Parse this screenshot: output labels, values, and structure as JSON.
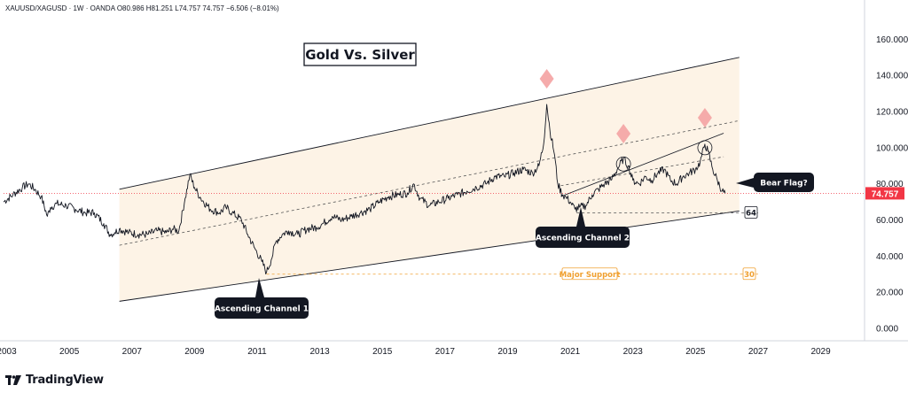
{
  "header": {
    "symbol": "XAUUSD/XAGUSD",
    "interval": "1W",
    "source": "OANDA",
    "open": "O80.986",
    "high": "H81.251",
    "low": "L74.757",
    "close": "74.757",
    "change": "−6.506 (−8.01%)"
  },
  "title": "Gold Vs. Silver",
  "branding": "TradingView",
  "colors": {
    "channel_fill": "#fdf3e6",
    "line": "#131722",
    "arrow": "#f4a7a7",
    "support": "#f0a030",
    "price_tag": "#f23645"
  },
  "annotations": {
    "channel1": "Ascending Channel 1",
    "channel2": "Ascending Channel 2",
    "bear_flag": "Bear Flag?",
    "major_support": "Major Support",
    "level_64": "64",
    "level_30": "30"
  },
  "price_tag": "74.757",
  "chart_data": {
    "type": "line",
    "title": "Gold Vs. Silver",
    "y_ticks": [
      "0.000",
      "20.000",
      "40.000",
      "60.000",
      "80.000",
      "100.000",
      "120.000",
      "140.000",
      "160.000"
    ],
    "x_ticks": [
      "2003",
      "2005",
      "2007",
      "2009",
      "2011",
      "2013",
      "2015",
      "2017",
      "2019",
      "2021",
      "2023",
      "2025",
      "2027",
      "2029"
    ],
    "ylim": [
      0,
      170
    ],
    "xlim": [
      2002.9,
      2030.4
    ],
    "last_value": 74.757,
    "horizontal_levels": [
      64,
      30
    ],
    "series": [
      {
        "values": [
          [
            2002.9,
            70
          ],
          [
            2003.2,
            74
          ],
          [
            2003.5,
            78
          ],
          [
            2003.7,
            80
          ],
          [
            2003.9,
            77
          ],
          [
            2004.1,
            73
          ],
          [
            2004.3,
            62
          ],
          [
            2004.4,
            67
          ],
          [
            2004.6,
            69
          ],
          [
            2004.9,
            68
          ],
          [
            2005.2,
            66
          ],
          [
            2005.5,
            64
          ],
          [
            2005.8,
            64
          ],
          [
            2006.1,
            58
          ],
          [
            2006.3,
            52
          ],
          [
            2006.45,
            53
          ],
          [
            2006.6,
            55
          ],
          [
            2006.9,
            53
          ],
          [
            2007.2,
            52
          ],
          [
            2007.5,
            52
          ],
          [
            2007.8,
            54
          ],
          [
            2008.1,
            53
          ],
          [
            2008.3,
            55
          ],
          [
            2008.5,
            54
          ],
          [
            2008.7,
            72
          ],
          [
            2008.85,
            85
          ],
          [
            2009.0,
            78
          ],
          [
            2009.2,
            72
          ],
          [
            2009.5,
            66
          ],
          [
            2009.8,
            64
          ],
          [
            2010.0,
            67
          ],
          [
            2010.2,
            64
          ],
          [
            2010.5,
            60
          ],
          [
            2010.7,
            52
          ],
          [
            2010.9,
            45
          ],
          [
            2011.15,
            37
          ],
          [
            2011.3,
            31
          ],
          [
            2011.45,
            38
          ],
          [
            2011.6,
            48
          ],
          [
            2011.8,
            52
          ],
          [
            2012.0,
            54
          ],
          [
            2012.3,
            52
          ],
          [
            2012.6,
            55
          ],
          [
            2012.9,
            56
          ],
          [
            2013.1,
            58
          ],
          [
            2013.4,
            62
          ],
          [
            2013.7,
            60
          ],
          [
            2014.0,
            62
          ],
          [
            2014.3,
            64
          ],
          [
            2014.6,
            66
          ],
          [
            2014.9,
            70
          ],
          [
            2015.2,
            73
          ],
          [
            2015.5,
            74
          ],
          [
            2015.8,
            75
          ],
          [
            2016.0,
            80
          ],
          [
            2016.2,
            72
          ],
          [
            2016.5,
            68
          ],
          [
            2016.8,
            70
          ],
          [
            2017.1,
            72
          ],
          [
            2017.4,
            74
          ],
          [
            2017.7,
            76
          ],
          [
            2018.0,
            78
          ],
          [
            2018.3,
            80
          ],
          [
            2018.6,
            84
          ],
          [
            2018.9,
            84
          ],
          [
            2019.2,
            86
          ],
          [
            2019.5,
            88
          ],
          [
            2019.8,
            86
          ],
          [
            2020.0,
            90
          ],
          [
            2020.15,
            102
          ],
          [
            2020.25,
            124
          ],
          [
            2020.35,
            110
          ],
          [
            2020.5,
            96
          ],
          [
            2020.6,
            80
          ],
          [
            2020.75,
            74
          ],
          [
            2020.9,
            72
          ],
          [
            2021.0,
            70
          ],
          [
            2021.15,
            66
          ],
          [
            2021.3,
            67
          ],
          [
            2021.5,
            68
          ],
          [
            2021.7,
            74
          ],
          [
            2021.9,
            77
          ],
          [
            2022.1,
            80
          ],
          [
            2022.3,
            82
          ],
          [
            2022.5,
            88
          ],
          [
            2022.7,
            94
          ],
          [
            2022.85,
            90
          ],
          [
            2023.0,
            82
          ],
          [
            2023.2,
            80
          ],
          [
            2023.4,
            84
          ],
          [
            2023.6,
            82
          ],
          [
            2023.8,
            86
          ],
          [
            2024.0,
            88
          ],
          [
            2024.2,
            82
          ],
          [
            2024.4,
            80
          ],
          [
            2024.6,
            84
          ],
          [
            2024.8,
            86
          ],
          [
            2025.0,
            88
          ],
          [
            2025.15,
            92
          ],
          [
            2025.3,
            102
          ],
          [
            2025.4,
            98
          ],
          [
            2025.55,
            88
          ],
          [
            2025.7,
            82
          ],
          [
            2025.85,
            76
          ],
          [
            2025.95,
            74.757
          ]
        ]
      }
    ]
  }
}
